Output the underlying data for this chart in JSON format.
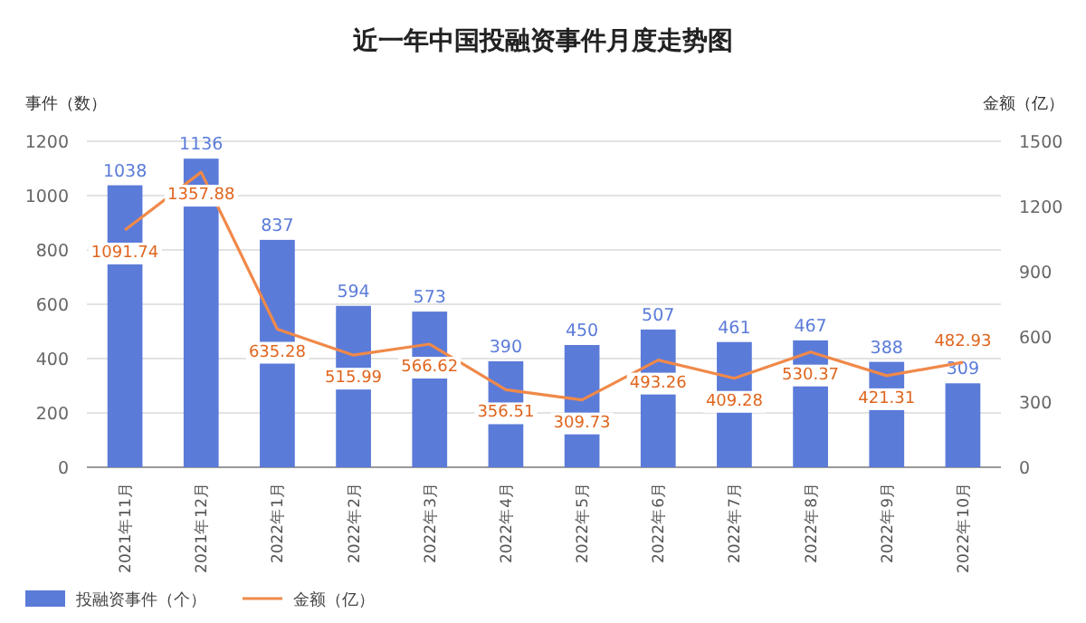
{
  "chart_data": {
    "type": "bar",
    "title": "近一年中国投融资事件月度走势图",
    "ylabel": "事件（数）",
    "y2label": "金额（亿）",
    "categories": [
      "2021年11月",
      "2021年12月",
      "2022年1月",
      "2022年2月",
      "2022年3月",
      "2022年4月",
      "2022年5月",
      "2022年6月",
      "2022年7月",
      "2022年8月",
      "2022年9月",
      "2022年10月"
    ],
    "series": [
      {
        "name": "投融资事件（个）",
        "color": "#5b7bd9",
        "values": [
          1038,
          1136,
          837,
          594,
          573,
          390,
          450,
          507,
          461,
          467,
          388,
          309
        ]
      },
      {
        "name": "金额（亿）",
        "type": "line",
        "axis": "y2",
        "color": "#f0894a",
        "values": [
          1091.74,
          1357.88,
          635.28,
          515.99,
          566.62,
          356.51,
          309.73,
          493.26,
          409.28,
          530.37,
          421.31,
          482.93
        ]
      }
    ],
    "ylim": [
      0,
      1200
    ],
    "yticks": [
      0,
      200,
      400,
      600,
      800,
      1000,
      1200
    ],
    "y2lim": [
      0,
      1500
    ],
    "y2ticks": [
      0,
      300,
      600,
      900,
      1200,
      1500
    ],
    "grid": "y",
    "data_labels": true,
    "legend": "bottom",
    "marker": "none",
    "line_style": "solid"
  }
}
